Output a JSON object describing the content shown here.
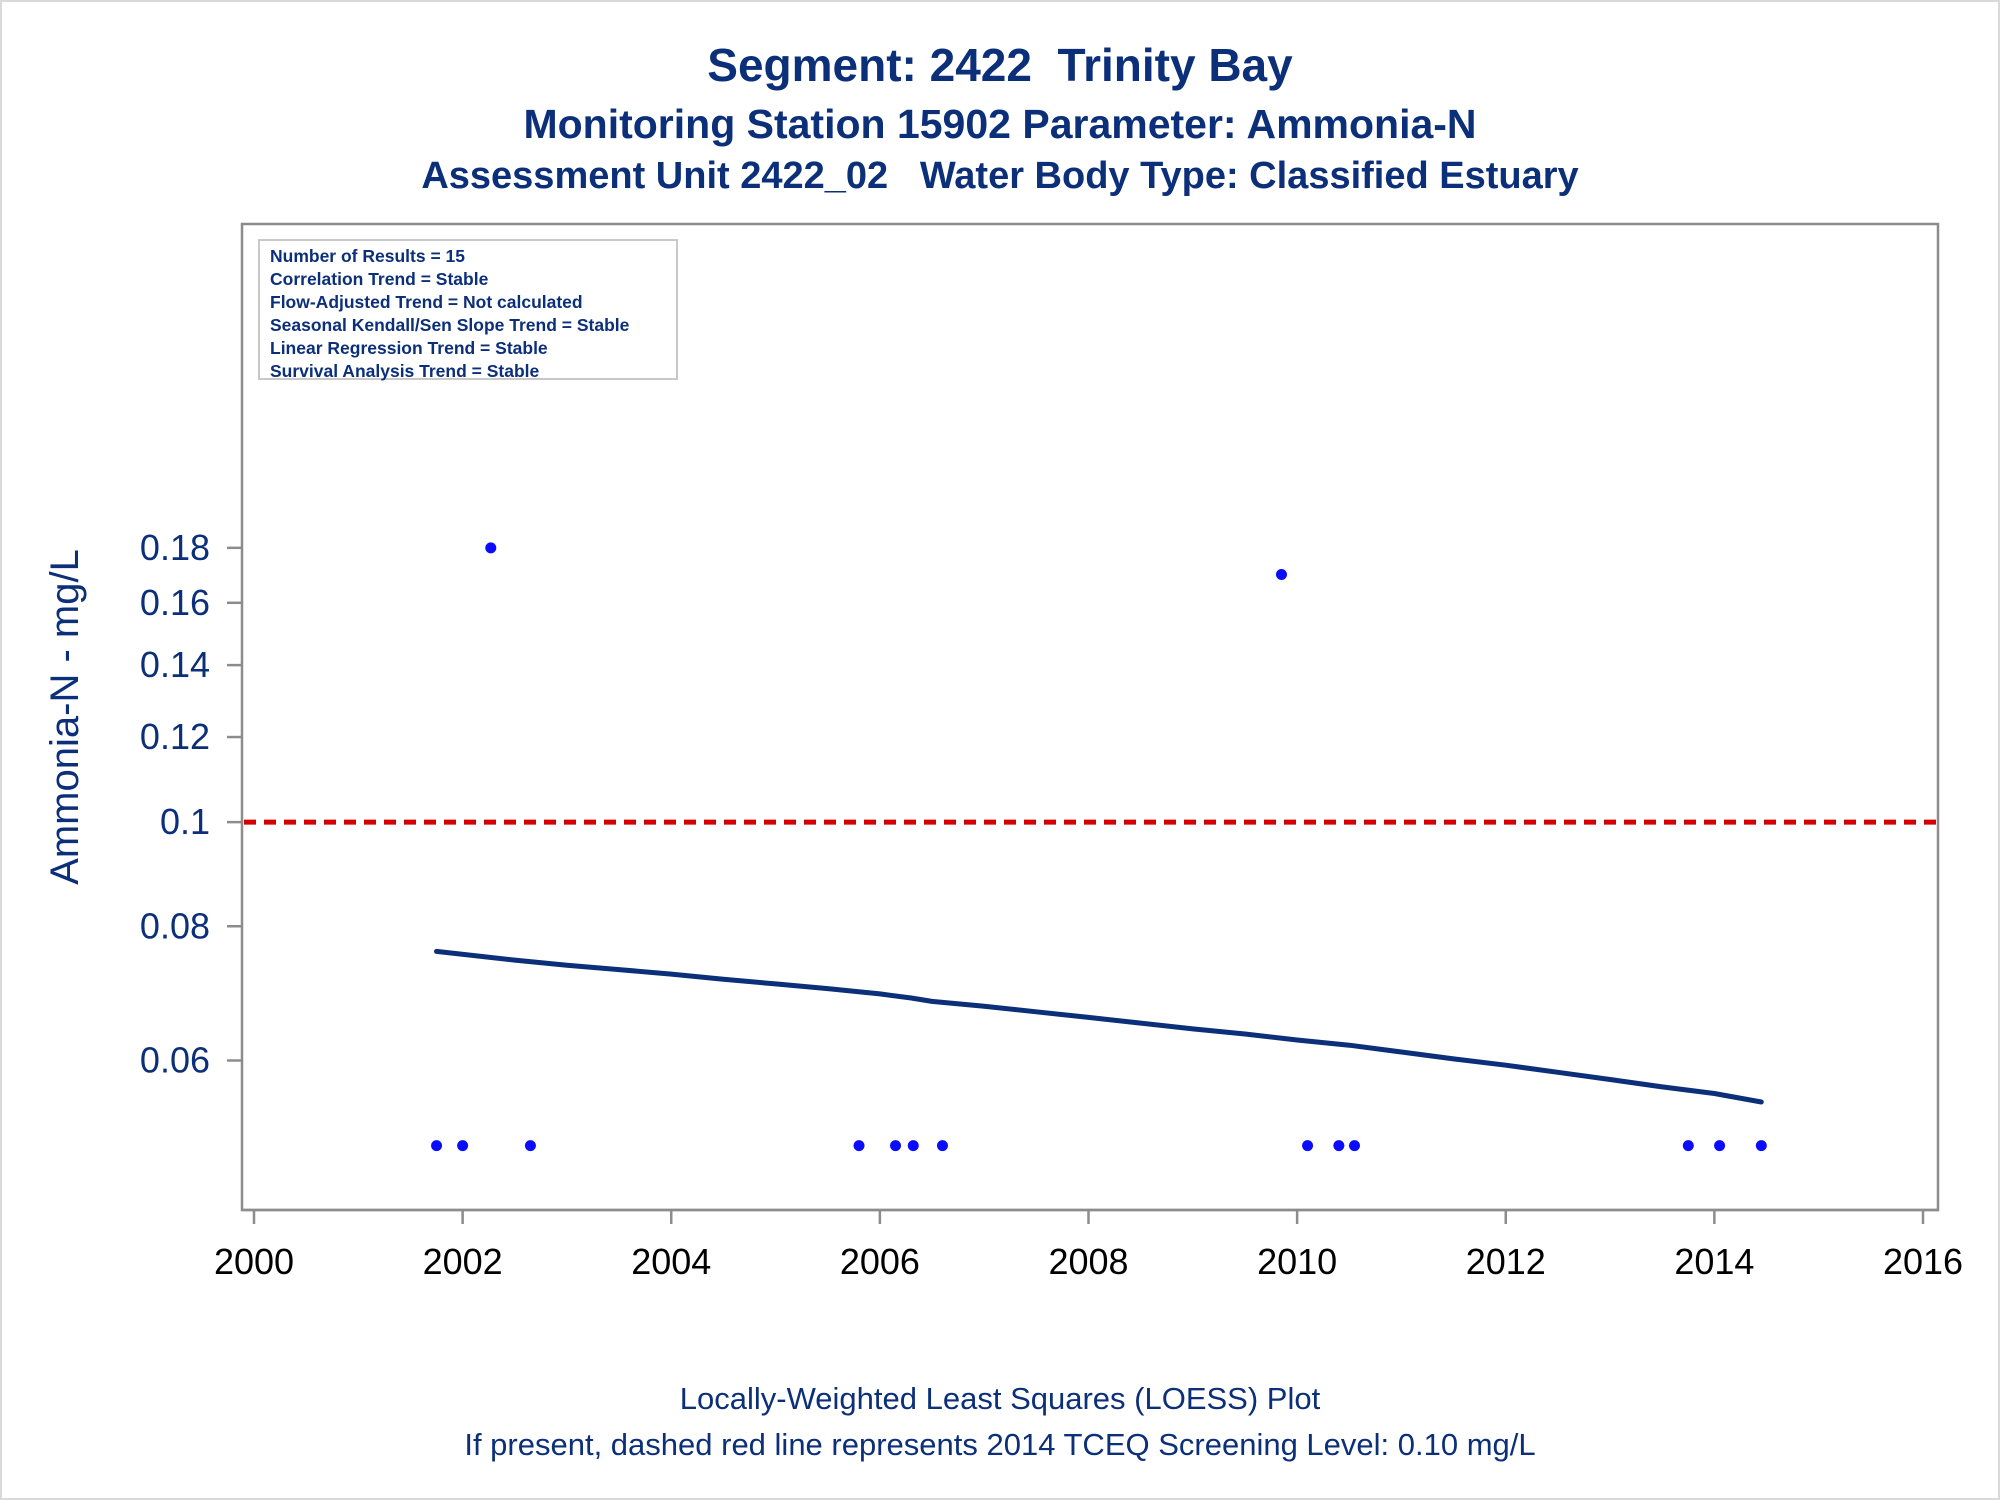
{
  "titles": {
    "line1": "Segment: 2422  Trinity Bay",
    "line2": "Monitoring Station 15902 Parameter: Ammonia-N",
    "line3": "Assessment Unit 2422_02   Water Body Type: Classified Estuary"
  },
  "footnotes": {
    "line1": "Locally-Weighted Least Squares (LOESS) Plot",
    "line2": "If present, dashed red line represents 2014 TCEQ Screening Level: 0.10 mg/L"
  },
  "info_box": [
    "Number of Results = 15",
    "Correlation Trend = Stable",
    "Flow-Adjusted Trend = Not calculated",
    "Seasonal Kendall/Sen Slope Trend = Stable",
    "Linear Regression Trend = Stable",
    "Survival Analysis Trend = Stable"
  ],
  "chart_data": {
    "type": "scatter",
    "title": "Segment: 2422  Trinity Bay",
    "xlabel": "",
    "ylabel": "Ammonia-N - mg/L",
    "y_scale": "log",
    "xlim": [
      2000,
      2016
    ],
    "ylim": [
      0.05,
      0.18
    ],
    "x_ticks": [
      "2000",
      "2002",
      "2004",
      "2006",
      "2008",
      "2010",
      "2012",
      "2014",
      "2016"
    ],
    "y_ticks": [
      "0.06",
      "0.08",
      "0.1",
      "0.12",
      "0.14",
      "0.16",
      "0.18"
    ],
    "y_tick_values": [
      0.06,
      0.08,
      0.1,
      0.12,
      0.14,
      0.16,
      0.18
    ],
    "grid": false,
    "points": {
      "x": [
        2001.75,
        2002.0,
        2002.27,
        2002.65,
        2005.8,
        2006.15,
        2006.32,
        2006.6,
        2009.85,
        2010.1,
        2010.4,
        2010.55,
        2013.75,
        2014.05,
        2014.45
      ],
      "y": [
        0.05,
        0.05,
        0.18,
        0.05,
        0.05,
        0.05,
        0.05,
        0.05,
        0.17,
        0.05,
        0.05,
        0.05,
        0.05,
        0.05,
        0.05
      ]
    },
    "loess": {
      "x": [
        2001.75,
        2002.5,
        2003.0,
        2003.5,
        2004.0,
        2004.5,
        2005.0,
        2005.5,
        2006.0,
        2006.3,
        2006.5,
        2007.0,
        2007.5,
        2008.0,
        2008.5,
        2009.0,
        2009.5,
        2010.0,
        2010.5,
        2011.0,
        2011.5,
        2012.0,
        2012.5,
        2013.0,
        2013.5,
        2014.0,
        2014.45
      ],
      "y": [
        0.0758,
        0.0744,
        0.0736,
        0.0729,
        0.0722,
        0.0714,
        0.0707,
        0.07,
        0.0692,
        0.0686,
        0.0681,
        0.0674,
        0.0666,
        0.0658,
        0.065,
        0.0642,
        0.0635,
        0.0627,
        0.062,
        0.0611,
        0.0602,
        0.0594,
        0.0585,
        0.0576,
        0.0567,
        0.0559,
        0.0549
      ]
    },
    "reference_line": {
      "y": 0.1,
      "style": "dashed",
      "color": "#d40000"
    },
    "colors": {
      "points": "#0b0bff",
      "loess": "#0c2f7a",
      "axis": "#0c2f7a",
      "frame": "#8c8c8c",
      "title": "#0c2f7a"
    }
  }
}
